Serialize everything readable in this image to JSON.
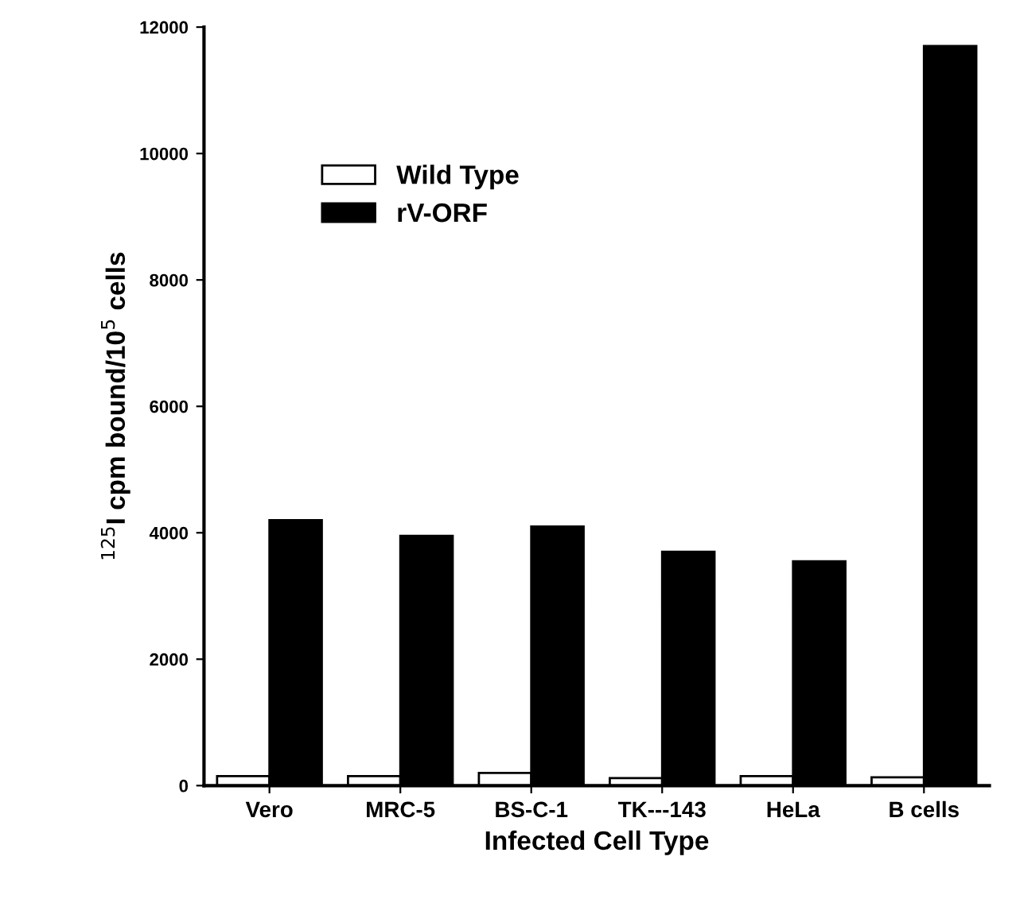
{
  "chart_data": {
    "type": "bar",
    "xlabel": "Infected Cell Type",
    "ylabel": "$^{125}$I cpm bound/10$^{5}$ cells",
    "categories": [
      "Vero",
      "MRC-5",
      "BS-C-1",
      "TK---143",
      "HeLa",
      "B cells"
    ],
    "series": [
      {
        "name": "Wild Type",
        "color": "#ffffff",
        "values": [
          150,
          150,
          200,
          120,
          150,
          130
        ]
      },
      {
        "name": "rV-ORF",
        "color": "#000000",
        "values": [
          4200,
          3950,
          4100,
          3700,
          3550,
          11700
        ]
      }
    ],
    "ylim": [
      0,
      12000
    ],
    "yticks": [
      0,
      2000,
      4000,
      6000,
      8000,
      10000,
      12000
    ],
    "grid": false,
    "legend": "top left"
  }
}
